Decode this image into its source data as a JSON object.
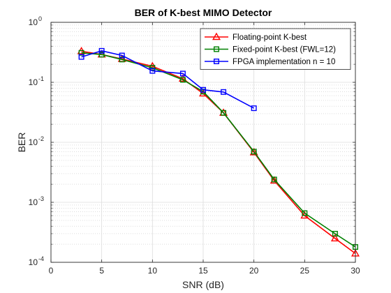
{
  "chart_data": {
    "type": "line",
    "title": "BER of K-best MIMO Detector",
    "xlabel": "SNR (dB)",
    "ylabel": "BER",
    "xlim": [
      0,
      30
    ],
    "ylim": [
      0.0001,
      1
    ],
    "yscale": "log",
    "grid": true,
    "minor_grid": true,
    "legend_position": "top-right",
    "x_ticks": [
      "0",
      "5",
      "10",
      "15",
      "20",
      "25",
      "30"
    ],
    "y_ticks": [
      {
        "value": 0.0001,
        "base": "10",
        "exp": "-4"
      },
      {
        "value": 0.001,
        "base": "10",
        "exp": "-3"
      },
      {
        "value": 0.01,
        "base": "10",
        "exp": "-2"
      },
      {
        "value": 0.1,
        "base": "10",
        "exp": "-1"
      },
      {
        "value": 1,
        "base": "10",
        "exp": "0"
      }
    ],
    "series": [
      {
        "name": "Floating-point K-best",
        "color": "#ff0000",
        "marker": "triangle",
        "x": [
          3,
          5,
          7,
          10,
          13,
          15,
          17,
          20,
          22,
          25,
          28,
          30
        ],
        "y": [
          0.33,
          0.29,
          0.245,
          0.185,
          0.115,
          0.065,
          0.031,
          0.0068,
          0.0023,
          0.0006,
          0.00025,
          0.00014
        ]
      },
      {
        "name": "Fixed-point K-best (FWL=12)",
        "color": "#008000",
        "marker": "square",
        "x": [
          3,
          5,
          7,
          10,
          13,
          15,
          17,
          20,
          22,
          25,
          28,
          30
        ],
        "y": [
          0.31,
          0.29,
          0.24,
          0.175,
          0.11,
          0.07,
          0.031,
          0.007,
          0.0024,
          0.00066,
          0.0003,
          0.00018
        ]
      },
      {
        "name": "FPGA implementation n = 10",
        "color": "#0000ff",
        "marker": "square",
        "x": [
          3,
          5,
          7,
          10,
          13,
          15,
          17,
          20
        ],
        "y": [
          0.265,
          0.335,
          0.28,
          0.155,
          0.14,
          0.075,
          0.069,
          0.037
        ]
      }
    ]
  }
}
